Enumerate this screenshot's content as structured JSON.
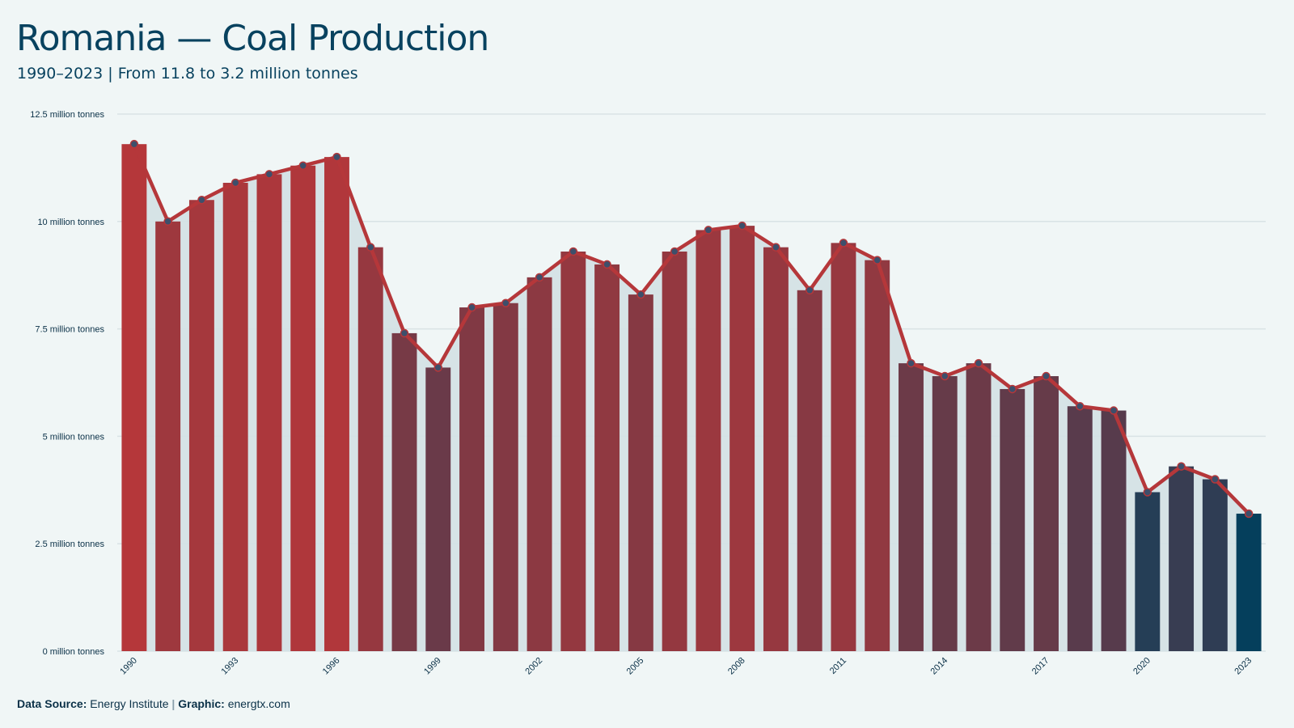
{
  "chart_data": {
    "type": "bar",
    "title": "Romania — Coal Production",
    "subtitle": "1990–2023 | From 11.8 to 3.2 million tonnes",
    "unit": "million tonnes",
    "x": [
      1990,
      1991,
      1992,
      1993,
      1994,
      1995,
      1996,
      1997,
      1998,
      1999,
      2000,
      2001,
      2002,
      2003,
      2004,
      2005,
      2006,
      2007,
      2008,
      2009,
      2010,
      2011,
      2012,
      2013,
      2014,
      2015,
      2016,
      2017,
      2018,
      2019,
      2020,
      2021,
      2022,
      2023
    ],
    "values": [
      11.8,
      10.0,
      10.5,
      10.9,
      11.1,
      11.3,
      11.5,
      9.4,
      7.4,
      6.6,
      8.0,
      8.1,
      8.7,
      9.3,
      9.0,
      8.3,
      9.3,
      9.8,
      9.9,
      9.4,
      8.4,
      9.5,
      9.1,
      6.7,
      6.4,
      6.7,
      6.1,
      6.4,
      5.7,
      5.6,
      3.7,
      4.3,
      4.0,
      3.2
    ],
    "x_tick_labels": [
      "1990",
      "1993",
      "1996",
      "1999",
      "2002",
      "2005",
      "2008",
      "2011",
      "2014",
      "2017",
      "2020",
      "2023"
    ],
    "y_tick_labels": [
      "0 million tonnes",
      "2.5 million tonnes",
      "5 million tonnes",
      "7.5 million tonnes",
      "10 million tonnes",
      "12.5 million tonnes"
    ],
    "y_ticks": [
      0,
      2.5,
      5,
      7.5,
      10,
      12.5
    ],
    "ylim": [
      0,
      12.5
    ],
    "grid": true,
    "overlay": "line with markers over bars, shaded area beneath line",
    "colors": {
      "high": "#b5373a",
      "low": "#053f5c",
      "line": "#b5373a",
      "area": "#d3e1e4",
      "grid": "#d9e3e5",
      "marker": "#3d4f6b"
    }
  },
  "footer": {
    "source_label": "Data Source:",
    "source_value": "Energy Institute",
    "separator": "|",
    "graphic_label": "Graphic:",
    "graphic_value": "energtx.com"
  }
}
